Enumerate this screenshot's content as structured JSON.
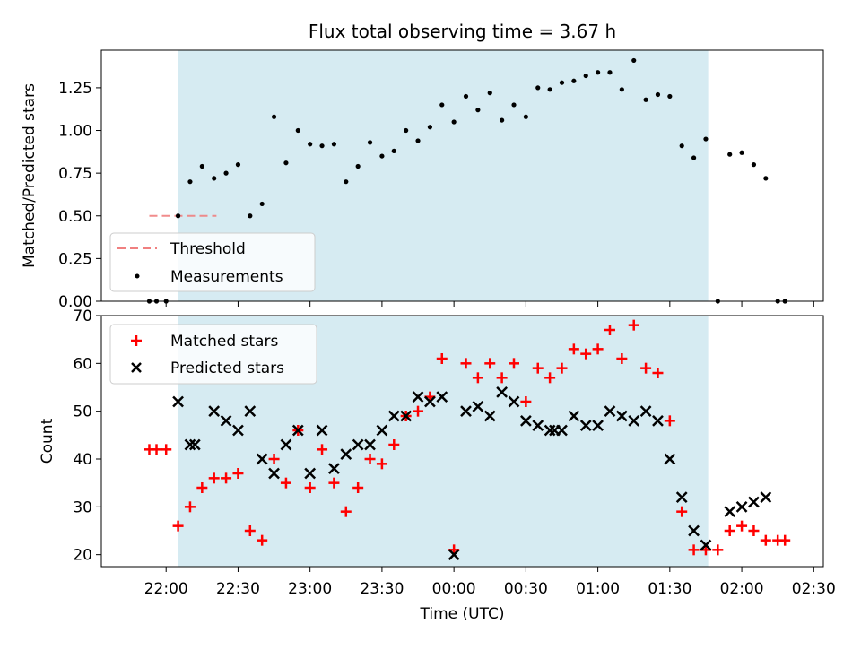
{
  "chart_data": [
    {
      "type": "scatter",
      "title": "Flux total observing time = 3.67 h",
      "xlabel": "",
      "ylabel": "Matched/Predicted stars",
      "ylim": [
        0,
        1.47
      ],
      "yticks": [
        "0.00",
        "0.25",
        "0.50",
        "0.75",
        "1.00",
        "1.25"
      ],
      "ytick_values": [
        0,
        0.25,
        0.5,
        0.75,
        1.0,
        1.25
      ],
      "threshold": {
        "label": "Threshold",
        "value": 0.5,
        "x": [
          "21:53",
          "22:21"
        ],
        "color": "#f08080"
      },
      "shaded_span": {
        "x": [
          "22:05",
          "01:46"
        ],
        "color": "#add8e6"
      },
      "legend": {
        "position": "lower-left",
        "entries": [
          "Threshold",
          "Measurements"
        ]
      },
      "series": [
        {
          "name": "Measurements",
          "marker": "dot",
          "color": "#000000",
          "x": [
            "21:53",
            "21:56",
            "22:00",
            "22:05",
            "22:10",
            "22:15",
            "22:20",
            "22:25",
            "22:30",
            "22:35",
            "22:40",
            "22:45",
            "22:50",
            "22:55",
            "23:00",
            "23:05",
            "23:10",
            "23:15",
            "23:20",
            "23:25",
            "23:30",
            "23:35",
            "23:40",
            "23:45",
            "23:50",
            "23:55",
            "00:00",
            "00:05",
            "00:10",
            "00:15",
            "00:20",
            "00:25",
            "00:30",
            "00:35",
            "00:40",
            "00:45",
            "00:50",
            "00:55",
            "01:00",
            "01:05",
            "01:10",
            "01:15",
            "01:20",
            "01:25",
            "01:30",
            "01:35",
            "01:40",
            "01:45",
            "01:50",
            "01:55",
            "02:00",
            "02:05",
            "02:10",
            "02:15",
            "02:18"
          ],
          "y": [
            0.0,
            0.0,
            0.0,
            0.5,
            0.7,
            0.79,
            0.72,
            0.75,
            0.8,
            0.5,
            0.57,
            1.08,
            0.81,
            1.0,
            0.92,
            0.91,
            0.92,
            0.7,
            0.79,
            0.93,
            0.85,
            0.88,
            1.0,
            0.94,
            1.02,
            1.15,
            1.05,
            1.2,
            1.12,
            1.22,
            1.06,
            1.15,
            1.08,
            1.25,
            1.24,
            1.28,
            1.29,
            1.32,
            1.34,
            1.34,
            1.24,
            1.41,
            1.18,
            1.21,
            1.2,
            0.91,
            0.84,
            0.95,
            0.0,
            0.86,
            0.87,
            0.8,
            0.72,
            0.0,
            0.0
          ]
        }
      ]
    },
    {
      "type": "scatter",
      "title": "",
      "xlabel": "Time (UTC)",
      "ylabel": "Count",
      "ylim": [
        17.5,
        70
      ],
      "yticks": [
        "20",
        "30",
        "40",
        "50",
        "60",
        "70"
      ],
      "ytick_values": [
        20,
        30,
        40,
        50,
        60,
        70
      ],
      "xlim": [
        "21:33",
        "02:34"
      ],
      "xticks": [
        "22:00",
        "22:30",
        "23:00",
        "23:30",
        "00:00",
        "00:30",
        "01:00",
        "01:30",
        "02:00",
        "02:30"
      ],
      "shaded_span": {
        "x": [
          "22:05",
          "01:46"
        ],
        "color": "#add8e6"
      },
      "legend": {
        "position": "upper-left",
        "entries": [
          "Matched stars",
          "Predicted stars"
        ]
      },
      "series": [
        {
          "name": "Matched stars",
          "marker": "plus",
          "color": "#ff0000",
          "x": [
            "21:53",
            "21:56",
            "22:00",
            "22:05",
            "22:10",
            "22:15",
            "22:20",
            "22:25",
            "22:30",
            "22:35",
            "22:40",
            "22:45",
            "22:50",
            "22:55",
            "23:00",
            "23:05",
            "23:10",
            "23:15",
            "23:20",
            "23:25",
            "23:30",
            "23:35",
            "23:40",
            "23:45",
            "23:50",
            "23:55",
            "00:00",
            "00:05",
            "00:10",
            "00:15",
            "00:20",
            "00:25",
            "00:30",
            "00:35",
            "00:40",
            "00:45",
            "00:50",
            "00:55",
            "01:00",
            "01:05",
            "01:10",
            "01:15",
            "01:20",
            "01:25",
            "01:30",
            "01:35",
            "01:40",
            "01:45",
            "01:50",
            "01:55",
            "02:00",
            "02:05",
            "02:10",
            "02:15",
            "02:18"
          ],
          "y": [
            42,
            42,
            42,
            26,
            30,
            34,
            36,
            36,
            37,
            25,
            23,
            40,
            35,
            46,
            34,
            42,
            35,
            29,
            34,
            40,
            39,
            43,
            49,
            50,
            53,
            61,
            21,
            60,
            57,
            60,
            57,
            60,
            52,
            59,
            57,
            59,
            63,
            62,
            63,
            67,
            61,
            68,
            59,
            58,
            48,
            29,
            21,
            21,
            21,
            25,
            26,
            25,
            23,
            23,
            23
          ]
        },
        {
          "name": "Predicted stars",
          "marker": "x",
          "color": "#000000",
          "x": [
            "22:05",
            "22:10",
            "22:12",
            "22:20",
            "22:25",
            "22:30",
            "22:35",
            "22:40",
            "22:45",
            "22:50",
            "22:55",
            "23:00",
            "23:05",
            "23:10",
            "23:15",
            "23:20",
            "23:25",
            "23:30",
            "23:35",
            "23:40",
            "23:45",
            "23:50",
            "23:55",
            "00:00",
            "00:05",
            "00:10",
            "00:15",
            "00:20",
            "00:25",
            "00:30",
            "00:35",
            "00:40",
            "00:42",
            "00:45",
            "00:50",
            "00:55",
            "01:00",
            "01:05",
            "01:10",
            "01:15",
            "01:20",
            "01:25",
            "01:30",
            "01:35",
            "01:40",
            "01:45",
            "01:55",
            "02:00",
            "02:05",
            "02:10"
          ],
          "y": [
            52,
            43,
            43,
            50,
            48,
            46,
            50,
            40,
            37,
            43,
            46,
            37,
            46,
            38,
            41,
            43,
            43,
            46,
            49,
            49,
            53,
            52,
            53,
            20,
            50,
            51,
            49,
            54,
            52,
            48,
            47,
            46,
            46,
            46,
            49,
            47,
            47,
            50,
            49,
            48,
            50,
            48,
            40,
            32,
            25,
            22,
            29,
            30,
            31,
            32
          ]
        }
      ]
    }
  ]
}
